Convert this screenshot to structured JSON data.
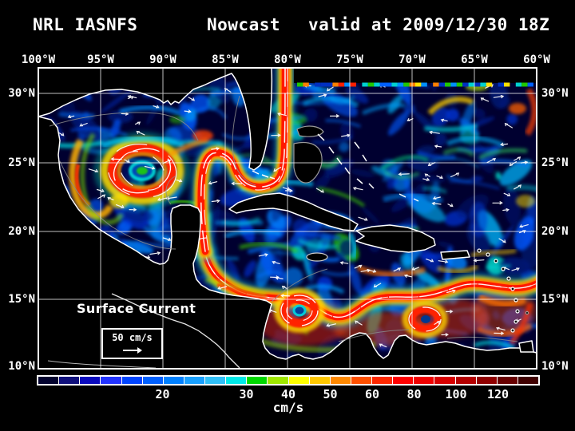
{
  "title": {
    "model": "NRL IASNFS",
    "product": "Nowcast",
    "valid": "valid at 2009/12/30 18Z"
  },
  "map": {
    "lon_ticks": [
      "100°W",
      "95°W",
      "90°W",
      "85°W",
      "80°W",
      "75°W",
      "70°W",
      "65°W",
      "60°W"
    ],
    "lat_ticks": [
      "30°N",
      "25°N",
      "20°N",
      "15°N",
      "10°N"
    ],
    "legend": {
      "title": "Surface Current",
      "scale_label": "50 cm/s"
    }
  },
  "colorbar": {
    "unit": "cm/s",
    "tick_labels": [
      "20",
      "30",
      "40",
      "50",
      "60",
      "80",
      "100",
      "120"
    ],
    "tick_boundaries": [
      6,
      10,
      12,
      14,
      16,
      18,
      20,
      22
    ],
    "n_segments": 24,
    "colors": [
      "#03032f",
      "#10107c",
      "#0a0abe",
      "#2233ff",
      "#0044ff",
      "#0060ff",
      "#0080ff",
      "#18a0ff",
      "#30c0f8",
      "#00e8e8",
      "#00d800",
      "#a0e800",
      "#ffff00",
      "#ffc800",
      "#ff8800",
      "#ff5000",
      "#ff2800",
      "#ff0000",
      "#f00000",
      "#d80000",
      "#b40000",
      "#900000",
      "#680000",
      "#400000"
    ]
  }
}
